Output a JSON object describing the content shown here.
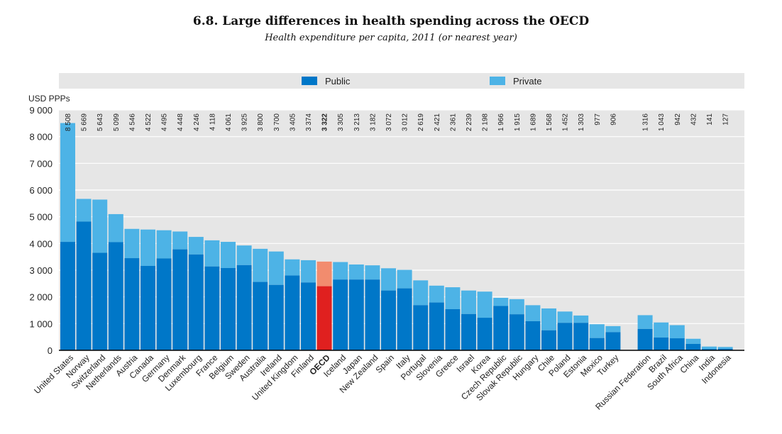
{
  "title": "6.8.  Large differences in health spending across the OECD",
  "subtitle": "Health expenditure per capita, 2011 (or nearest year)",
  "chart_data": {
    "type": "bar",
    "stacked": true,
    "ylabel": "USD PPPs",
    "ylim": [
      0,
      9000
    ],
    "yticks": [
      "0",
      "1 000",
      "2 000",
      "3 000",
      "4 000",
      "5 000",
      "6 000",
      "7 000",
      "8 000",
      "9 000"
    ],
    "legend_position": "top",
    "grid": true,
    "colors": {
      "public": "#0077C8",
      "private": "#4DB3E6",
      "oecd_public": "#E0201F",
      "oecd_private": "#F28C6E",
      "panel": "#E6E6E6"
    },
    "series": [
      {
        "name": "Public",
        "color": "#0077C8"
      },
      {
        "name": "Private",
        "color": "#4DB3E6"
      }
    ],
    "countries": [
      {
        "name": "United States",
        "total": 8508,
        "public": 4060,
        "label": "8 508"
      },
      {
        "name": "Norway",
        "total": 5669,
        "public": 4820,
        "label": "5 669"
      },
      {
        "name": "Switzerland",
        "total": 5643,
        "public": 3650,
        "label": "5 643"
      },
      {
        "name": "Netherlands",
        "total": 5099,
        "public": 4050,
        "label": "5 099"
      },
      {
        "name": "Austria",
        "total": 4546,
        "public": 3450,
        "label": "4 546"
      },
      {
        "name": "Canada",
        "total": 4522,
        "public": 3160,
        "label": "4 522"
      },
      {
        "name": "Germany",
        "total": 4495,
        "public": 3440,
        "label": "4 495"
      },
      {
        "name": "Denmark",
        "total": 4448,
        "public": 3780,
        "label": "4 448"
      },
      {
        "name": "Luxembourg",
        "total": 4246,
        "public": 3590,
        "label": "4 246"
      },
      {
        "name": "France",
        "total": 4118,
        "public": 3140,
        "label": "4 118"
      },
      {
        "name": "Belgium",
        "total": 4061,
        "public": 3080,
        "label": "4 061"
      },
      {
        "name": "Sweden",
        "total": 3925,
        "public": 3190,
        "label": "3 925"
      },
      {
        "name": "Australia",
        "total": 3800,
        "public": 2560,
        "label": "3 800"
      },
      {
        "name": "Ireland",
        "total": 3700,
        "public": 2450,
        "label": "3 700"
      },
      {
        "name": "United Kingdom",
        "total": 3405,
        "public": 2800,
        "label": "3 405"
      },
      {
        "name": "Finland",
        "total": 3374,
        "public": 2540,
        "label": "3 374"
      },
      {
        "name": "OECD",
        "total": 3322,
        "public": 2400,
        "label": "3 322",
        "highlight": true
      },
      {
        "name": "Iceland",
        "total": 3305,
        "public": 2650,
        "label": "3 305"
      },
      {
        "name": "Japan",
        "total": 3213,
        "public": 2650,
        "label": "3 213"
      },
      {
        "name": "New Zealand",
        "total": 3182,
        "public": 2650,
        "label": "3 182"
      },
      {
        "name": "Spain",
        "total": 3072,
        "public": 2240,
        "label": "3 072"
      },
      {
        "name": "Italy",
        "total": 3012,
        "public": 2320,
        "label": "3 012"
      },
      {
        "name": "Portugal",
        "total": 2619,
        "public": 1690,
        "label": "2 619"
      },
      {
        "name": "Slovenia",
        "total": 2421,
        "public": 1790,
        "label": "2 421"
      },
      {
        "name": "Greece",
        "total": 2361,
        "public": 1540,
        "label": "2 361"
      },
      {
        "name": "Israel",
        "total": 2239,
        "public": 1360,
        "label": "2 239"
      },
      {
        "name": "Korea",
        "total": 2198,
        "public": 1220,
        "label": "2 198"
      },
      {
        "name": "Czech Republic",
        "total": 1966,
        "public": 1660,
        "label": "1 966"
      },
      {
        "name": "Slovak Republic",
        "total": 1915,
        "public": 1350,
        "label": "1 915"
      },
      {
        "name": "Hungary",
        "total": 1689,
        "public": 1090,
        "label": "1 689"
      },
      {
        "name": "Chile",
        "total": 1568,
        "public": 750,
        "label": "1 568"
      },
      {
        "name": "Poland",
        "total": 1452,
        "public": 1030,
        "label": "1 452"
      },
      {
        "name": "Estonia",
        "total": 1303,
        "public": 1030,
        "label": "1 303"
      },
      {
        "name": "Mexico",
        "total": 977,
        "public": 460,
        "label": "977"
      },
      {
        "name": "Turkey",
        "total": 906,
        "public": 680,
        "label": "906"
      },
      {
        "name": "Russian Federation",
        "total": 1316,
        "public": 800,
        "label": "1 316"
      },
      {
        "name": "Brazil",
        "total": 1043,
        "public": 480,
        "label": "1 043"
      },
      {
        "name": "South Africa",
        "total": 942,
        "public": 450,
        "label": "942"
      },
      {
        "name": "China",
        "total": 432,
        "public": 240,
        "label": "432"
      },
      {
        "name": "India",
        "total": 141,
        "public": 50,
        "label": "141"
      },
      {
        "name": "Indonesia",
        "total": 127,
        "public": 60,
        "label": "127"
      }
    ]
  }
}
